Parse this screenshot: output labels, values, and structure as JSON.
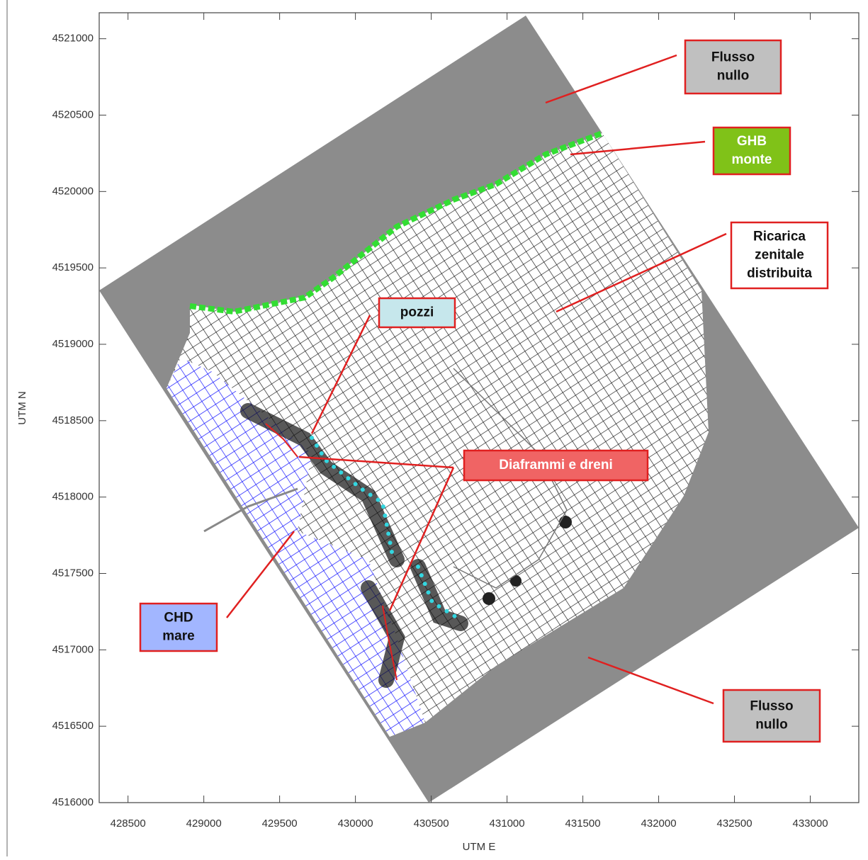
{
  "map": {
    "x_label": "UTM E",
    "y_label": "UTM N",
    "xlim": [
      428310,
      433320
    ],
    "ylim": [
      4516000,
      4521170
    ],
    "xticks": [
      428500,
      429000,
      429500,
      430000,
      430500,
      431000,
      431500,
      432000,
      432500,
      433000
    ],
    "yticks": [
      4516000,
      4516500,
      4517000,
      4517500,
      4518000,
      4518500,
      4519000,
      4519500,
      4520000,
      4520500,
      4521000
    ],
    "annotations": [
      {
        "lines": [
          "Flusso",
          "nullo"
        ]
      },
      {
        "lines": [
          "GHB",
          "monte"
        ]
      },
      {
        "lines": [
          "Ricarica",
          "zenitale",
          "distribuita"
        ]
      },
      {
        "lines": [
          "pozzi"
        ]
      },
      {
        "lines": [
          "Diaframmi e dreni"
        ]
      },
      {
        "lines": [
          "CHD",
          "mare"
        ]
      },
      {
        "lines": [
          "Flusso",
          "nullo"
        ]
      }
    ]
  }
}
